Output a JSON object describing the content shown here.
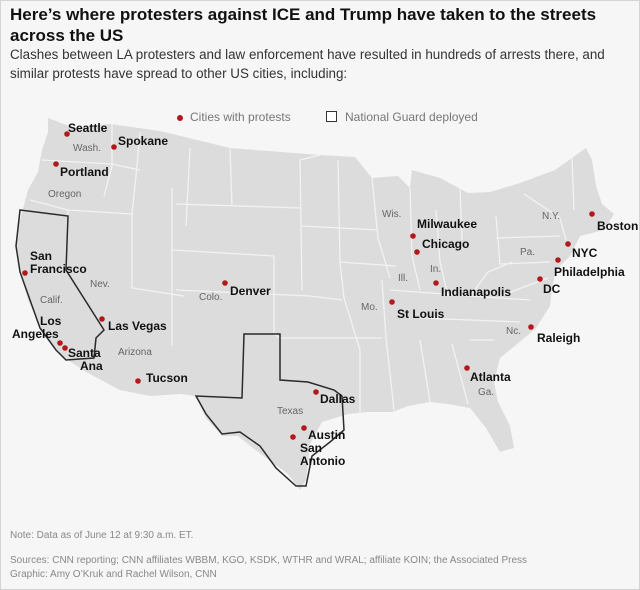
{
  "headline": "Here’s where protesters against ICE and Trump have taken to the streets across the US",
  "subhead": "Clashes between LA protesters and law enforcement have resulted in hundreds of arrests there, and similar protests have spread to other US cities, including:",
  "legend": {
    "cities_label": "Cities with protests",
    "guard_label": "National Guard deployed",
    "city_color": "#b3181c"
  },
  "map": {
    "land_color": "#dcdcdc",
    "state_line_color": "#f2f2f2",
    "guard_outline_color": "#2a2a2a",
    "guard_states": [
      "California",
      "Texas"
    ],
    "cities": [
      {
        "name": "Seattle"
      },
      {
        "name": "Spokane"
      },
      {
        "name": "Portland"
      },
      {
        "name": "San Francisco"
      },
      {
        "name": "Los Angeles"
      },
      {
        "name": "Santa Ana"
      },
      {
        "name": "Las Vegas"
      },
      {
        "name": "Tucson"
      },
      {
        "name": "Denver"
      },
      {
        "name": "Dallas"
      },
      {
        "name": "Austin"
      },
      {
        "name": "San Antonio"
      },
      {
        "name": "Milwaukee"
      },
      {
        "name": "Chicago"
      },
      {
        "name": "Indianapolis"
      },
      {
        "name": "St Louis"
      },
      {
        "name": "Atlanta"
      },
      {
        "name": "Raleigh"
      },
      {
        "name": "DC"
      },
      {
        "name": "Philadelphia"
      },
      {
        "name": "NYC"
      },
      {
        "name": "Boston"
      }
    ],
    "state_labels": [
      "Wash.",
      "Oregon",
      "Calif.",
      "Nev.",
      "Arizona",
      "Colo.",
      "Texas",
      "Wis.",
      "Ill.",
      "In.",
      "Mo.",
      "Ga.",
      "Nc.",
      "Pa.",
      "N.Y."
    ]
  },
  "note": "Note: Data as of June 12 at 9:30 a.m. ET.",
  "sources": "Sources: CNN reporting; CNN affiliates WBBM, KGO, KSDK, WTHR and WRAL; affiliate KOIN; the Associated Press",
  "credit": "Graphic: Amy O’Kruk and Rachel Wilson, CNN"
}
